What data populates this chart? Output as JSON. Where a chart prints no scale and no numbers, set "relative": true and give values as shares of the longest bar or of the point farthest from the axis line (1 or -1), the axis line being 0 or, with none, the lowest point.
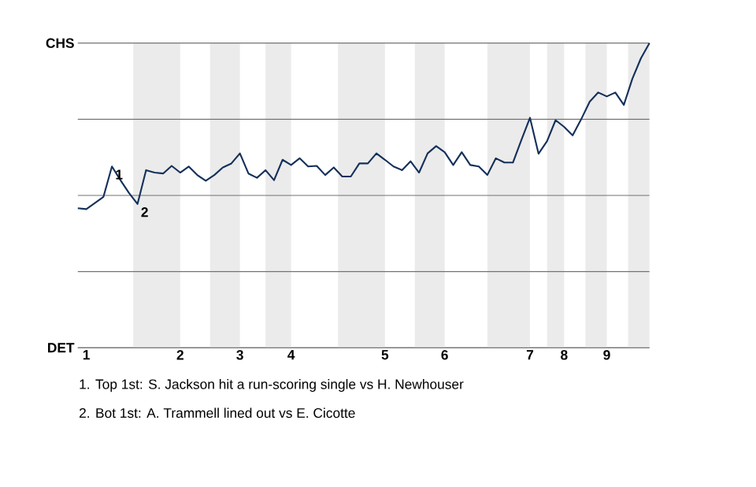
{
  "chart_data": {
    "type": "line",
    "relative": true,
    "categories": [
      null,
      "1",
      null,
      null,
      null,
      null,
      null,
      null,
      null,
      null,
      null,
      null,
      "2",
      null,
      null,
      null,
      null,
      null,
      null,
      "3",
      null,
      null,
      null,
      null,
      null,
      "4",
      null,
      null,
      null,
      null,
      null,
      null,
      null,
      null,
      null,
      null,
      "5",
      null,
      null,
      null,
      null,
      null,
      null,
      "6",
      null,
      null,
      null,
      null,
      null,
      null,
      null,
      null,
      null,
      "7",
      null,
      null,
      null,
      "8",
      null,
      null,
      null,
      null,
      "9",
      null,
      null,
      null,
      null,
      null
    ],
    "series": [
      {
        "color": "#14305a",
        "values": [
          0.458,
          0.455,
          0.475,
          0.495,
          0.595,
          0.55,
          0.508,
          0.472,
          0.583,
          0.575,
          0.572,
          0.597,
          0.575,
          0.595,
          0.567,
          0.548,
          0.567,
          0.592,
          0.605,
          0.638,
          0.572,
          0.558,
          0.583,
          0.55,
          0.617,
          0.6,
          0.622,
          0.595,
          0.597,
          0.567,
          0.592,
          0.562,
          0.562,
          0.605,
          0.605,
          0.638,
          0.617,
          0.595,
          0.583,
          0.612,
          0.575,
          0.638,
          0.662,
          0.642,
          0.6,
          0.642,
          0.6,
          0.595,
          0.567,
          0.622,
          0.608,
          0.608,
          0.683,
          0.755,
          0.637,
          0.678,
          0.747,
          0.725,
          0.697,
          0.75,
          0.808,
          0.838,
          0.825,
          0.838,
          0.797,
          0.883,
          0.95,
          1
        ]
      }
    ],
    "ref_lines": [
      {
        "axis": "y",
        "value": 0,
        "label": "DET",
        "color": "#737373"
      },
      {
        "axis": "y",
        "value": 0.25,
        "color": "#737373"
      },
      {
        "axis": "y",
        "value": 0.5,
        "color": "#737373"
      },
      {
        "axis": "y",
        "value": 0.75,
        "color": "#737373"
      },
      {
        "axis": "y",
        "value": 1,
        "label": "CHS",
        "color": "#737373"
      }
    ],
    "annotations": [
      {
        "text": "1",
        "y": 0.595
      },
      {
        "text": "2",
        "y": 0.472
      },
      "1. Top 1st: S. Jackson hit a run-scoring single vs H. Newhouser",
      "2. Bot 1st: A. Trammell lined out vs E. Cicotte"
    ]
  }
}
